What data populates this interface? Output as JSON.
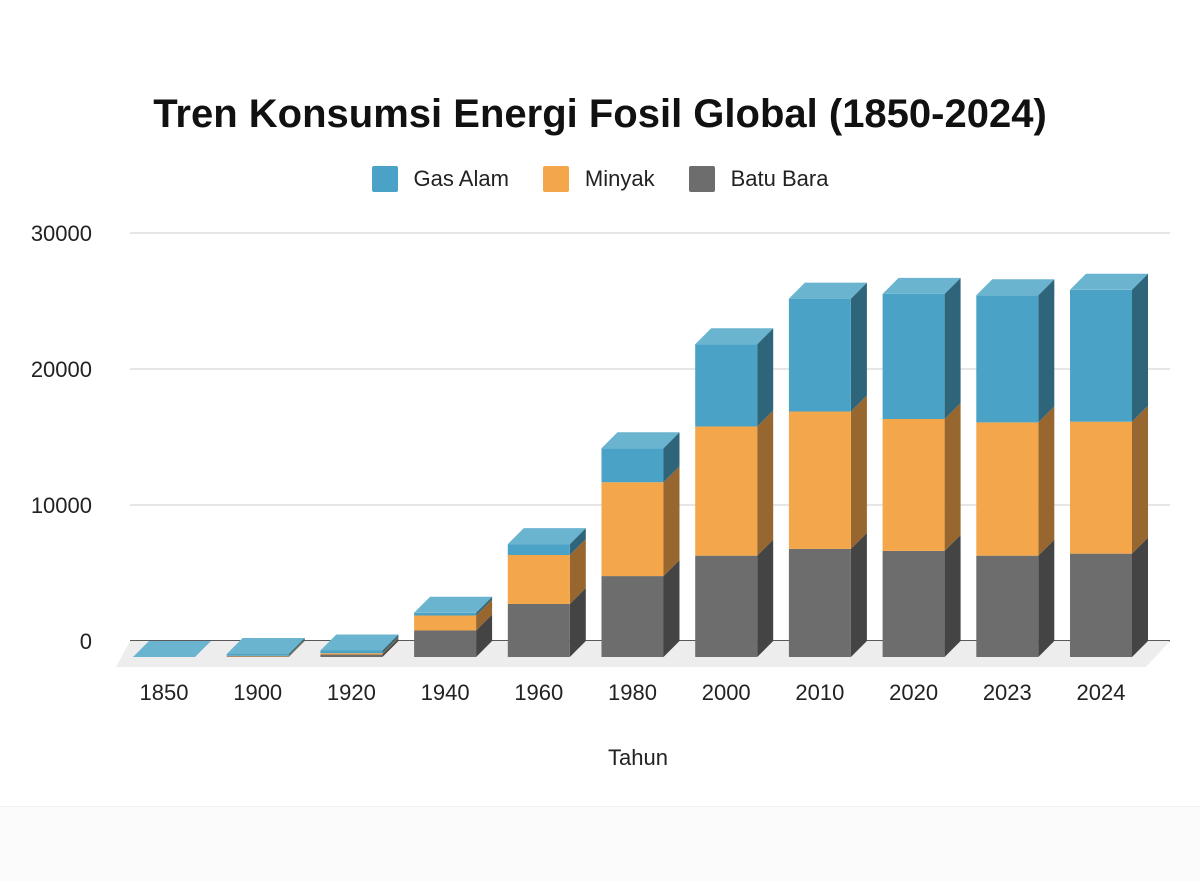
{
  "chart_data": {
    "type": "bar",
    "stacked": true,
    "style": "3d",
    "title": "Tren Konsumsi Energi Fosil Global (1850-2024)",
    "xlabel": "Tahun",
    "ylabel": "",
    "ylim": [
      0,
      30000
    ],
    "yticks": [
      0,
      10000,
      20000,
      30000
    ],
    "grid": true,
    "legend_position": "top-center",
    "categories": [
      "1850",
      "1900",
      "1920",
      "1940",
      "1960",
      "1980",
      "2000",
      "2010",
      "2020",
      "2023",
      "2024"
    ],
    "series": [
      {
        "name": "Batu Bara",
        "color": "#6d6d6d",
        "values": [
          0,
          40,
          180,
          1950,
          3900,
          5950,
          7450,
          7950,
          7800,
          7450,
          7600
        ]
      },
      {
        "name": "Minyak",
        "color": "#f4a64b",
        "values": [
          0,
          50,
          100,
          1100,
          3600,
          6900,
          9500,
          10100,
          9700,
          9800,
          9700
        ]
      },
      {
        "name": "Gas Alam",
        "color": "#4aa3c6",
        "values": [
          0,
          130,
          200,
          200,
          800,
          2500,
          6050,
          8300,
          9200,
          9350,
          9700
        ]
      }
    ]
  }
}
